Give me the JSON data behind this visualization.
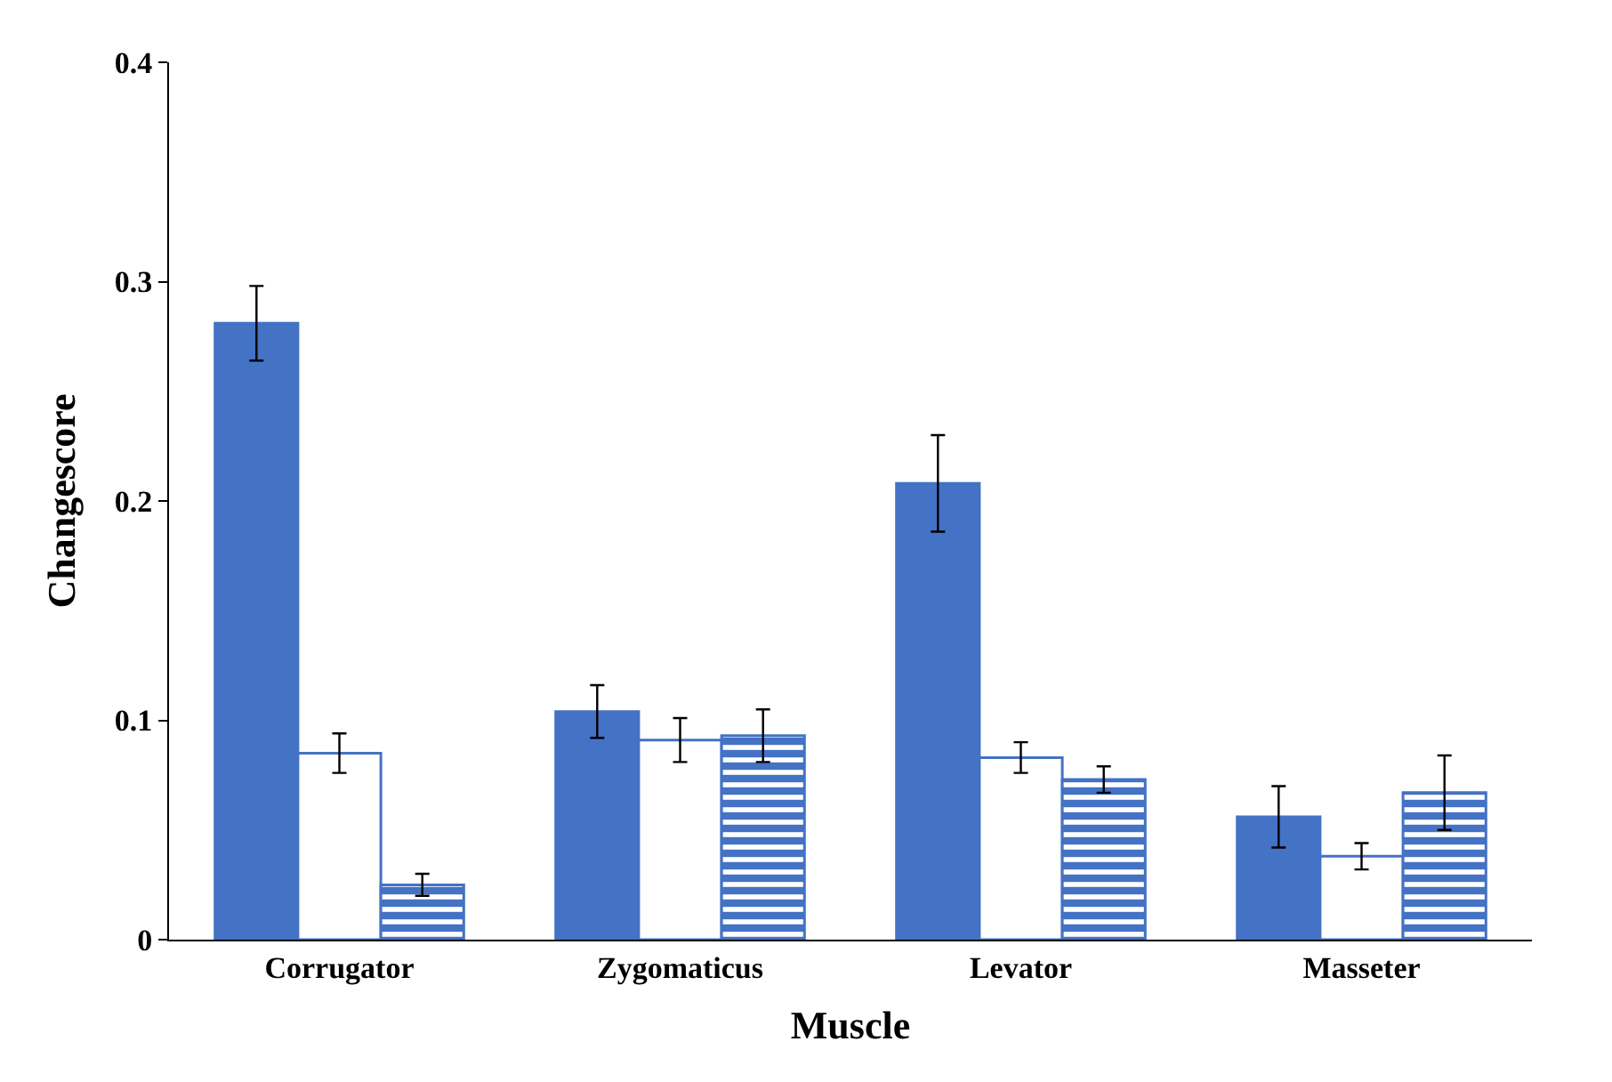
{
  "chart_data": {
    "type": "bar",
    "xlabel": "Muscle",
    "ylabel": "Changescore",
    "categories": [
      "Corrugator",
      "Zygomaticus",
      "Levator",
      "Masseter"
    ],
    "series": [
      {
        "color": "#4472c4",
        "values": [
          0.281,
          0.104,
          0.208,
          0.056
        ],
        "errors": [
          0.017,
          0.012,
          0.022,
          0.014
        ]
      },
      {
        "color": "#ffffff",
        "values": [
          0.085,
          0.091,
          0.083,
          0.038
        ],
        "errors": [
          0.009,
          0.01,
          0.007,
          0.006
        ]
      },
      {
        "color": "#4472c4",
        "values": [
          0.025,
          0.093,
          0.073,
          0.067
        ],
        "errors": [
          0.005,
          0.012,
          0.006,
          0.017
        ]
      }
    ],
    "ylim": [
      0,
      0.4
    ],
    "yticks": [
      0,
      0.1,
      0.2,
      0.3,
      0.4
    ]
  }
}
